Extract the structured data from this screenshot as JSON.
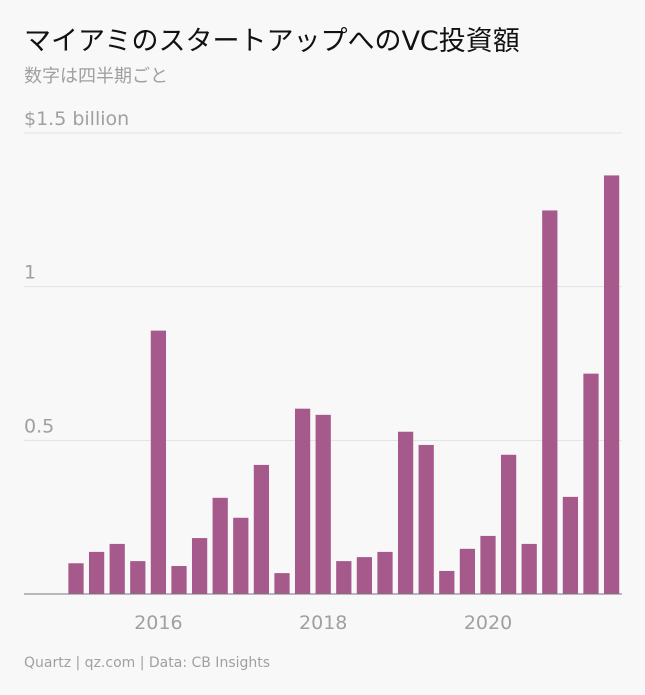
{
  "chart_data": {
    "type": "bar",
    "title": "マイアミのスタートアップへのVC投資額",
    "subtitle": "数字は四半期ごと",
    "source": "Quartz | qz.com | Data: CB Insights",
    "categories": [
      null,
      null,
      null,
      null,
      "2016",
      null,
      null,
      null,
      null,
      null,
      null,
      null,
      "2018",
      null,
      null,
      null,
      null,
      null,
      null,
      null,
      "2020",
      null,
      null,
      null,
      null,
      null,
      null
    ],
    "values": [
      0.1,
      0.137,
      0.163,
      0.107,
      0.857,
      0.091,
      0.182,
      0.313,
      0.248,
      0.42,
      0.068,
      0.603,
      0.583,
      0.107,
      0.12,
      0.137,
      0.528,
      0.485,
      0.075,
      0.147,
      0.189,
      0.453,
      0.163,
      1.248,
      0.316,
      0.717,
      1.362
    ],
    "color": "#a65a8b",
    "ylim": [
      0,
      1.5
    ],
    "yticks": [
      0.5,
      1,
      {
        "value": 1.5,
        "label": "$1.5 billion"
      }
    ],
    "grid": true
  }
}
